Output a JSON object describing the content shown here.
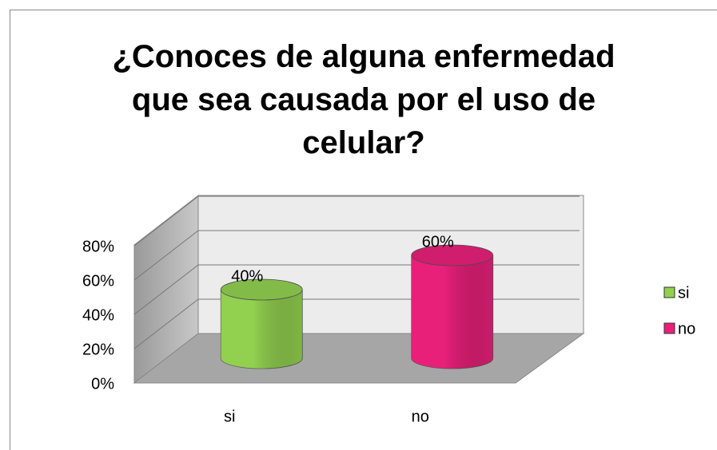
{
  "chart_data": {
    "type": "bar3d_cylinder",
    "title": "¿Conoces de alguna enfermedad que sea causada por el uso de celular?",
    "categories": [
      "si",
      "no"
    ],
    "values": [
      40,
      60
    ],
    "value_labels": [
      "40%",
      "60%"
    ],
    "colors": [
      "#92d050",
      "#e8207a"
    ],
    "ylim": [
      0,
      80
    ],
    "yticks": [
      {
        "value": 0,
        "label": "0%"
      },
      {
        "value": 20,
        "label": "20%"
      },
      {
        "value": 40,
        "label": "40%"
      },
      {
        "value": 60,
        "label": "60%"
      },
      {
        "value": 80,
        "label": "80%"
      }
    ],
    "grid": true,
    "legend": "right"
  }
}
